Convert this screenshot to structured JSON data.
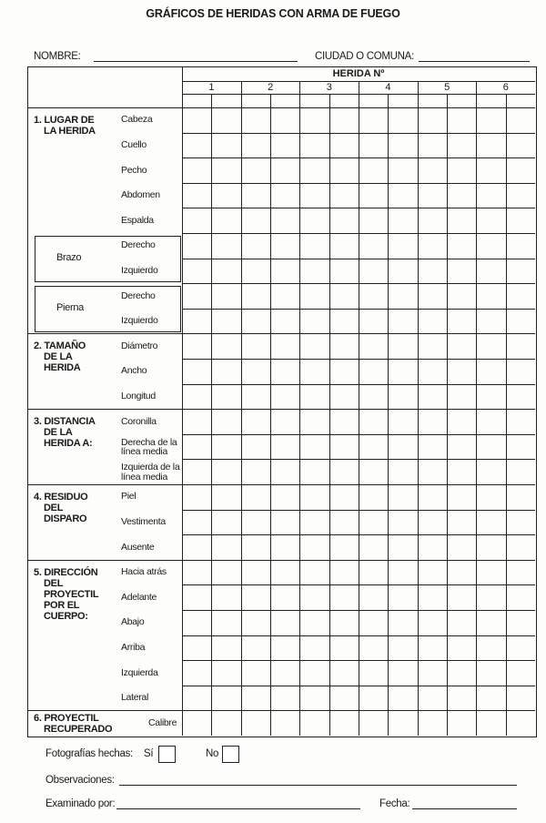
{
  "title": "GRÁFICOS DE HERIDAS CON ARMA DE FUEGO",
  "fields": {
    "nombre_label": "NOMBRE:",
    "nombre_value": "",
    "ciudad_label": "CIUDAD O COMUNA:",
    "ciudad_value": ""
  },
  "table": {
    "header": "HERIDA Nº",
    "wound_numbers": [
      "1",
      "2",
      "3",
      "4",
      "5",
      "6"
    ],
    "sections": [
      {
        "label": "1. LUGAR DE\n    LA HERIDA",
        "rows": [
          "Cabeza",
          "Cuello",
          "Pecho",
          "Abdomen",
          "Espalda"
        ],
        "groups": [
          {
            "label": "Brazo",
            "rows": [
              "Derecho",
              "Izquierdo"
            ]
          },
          {
            "label": "Pierna",
            "rows": [
              "Derecho",
              "Izquierdo"
            ]
          }
        ]
      },
      {
        "label": "2. TAMAÑO\n    DE LA\n    HERIDA",
        "rows": [
          "Diámetro",
          "Ancho",
          "Longitud"
        ]
      },
      {
        "label": "3. DISTANCIA\n    DE LA\n    HERIDA A:",
        "rows": [
          "Coronilla",
          "Derecha de la línea media",
          "Izquierda de la línea media"
        ]
      },
      {
        "label": "4. RESIDUO\n    DEL\n    DISPARO",
        "rows": [
          "Piel",
          "Vestimenta",
          "Ausente"
        ]
      },
      {
        "label": "5. DIRECCIÓN\n    DEL\n    PROYECTIL\n    POR EL\n    CUERPO:",
        "rows": [
          "Hacia atrás",
          "Adelante",
          "Abajo",
          "Arriba",
          "Izquierda",
          "Lateral"
        ]
      },
      {
        "label": "6. PROYECTIL\n    RECUPERADO",
        "rows": [
          "Calibre"
        ]
      }
    ]
  },
  "footer": {
    "fotos_label": "Fotografías hechas:",
    "si_label": "Sí",
    "no_label": "No",
    "si_checked": false,
    "no_checked": false,
    "observaciones_label": "Observaciones:",
    "observaciones_value": "",
    "examinado_label": "Examinado por:",
    "examinado_value": "",
    "fecha_label": "Fecha:",
    "fecha_value": ""
  }
}
